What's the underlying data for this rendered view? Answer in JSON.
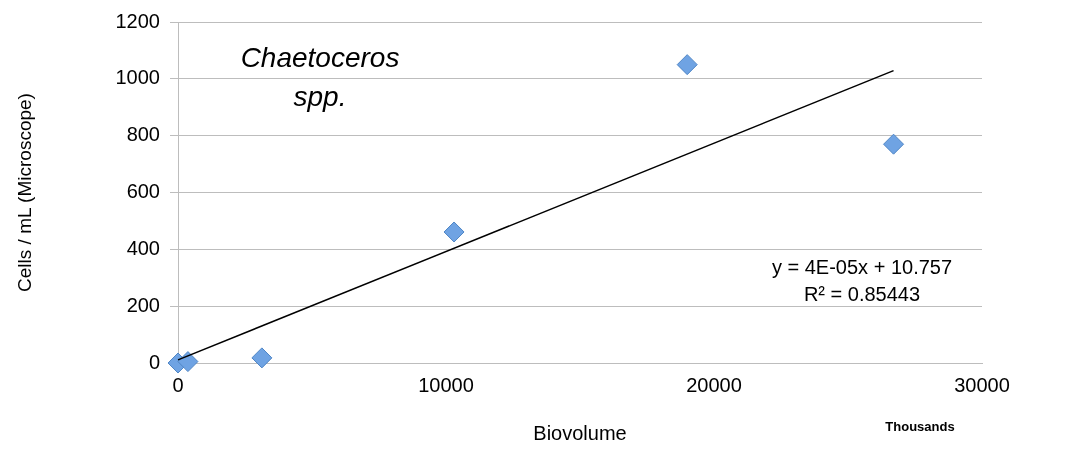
{
  "chart_data": {
    "type": "scatter",
    "title": "Chaetoceros spp.",
    "xlabel": "Biovolume",
    "ylabel": "Cells / mL (Microscope)",
    "xlim": [
      0,
      30000
    ],
    "xticks": [
      0,
      10000,
      20000,
      30000
    ],
    "ylim": [
      0,
      1200
    ],
    "yticks": [
      0,
      200,
      400,
      600,
      800,
      1000,
      1200
    ],
    "grid": "y",
    "legend": false,
    "marker": "diamond",
    "series": [
      {
        "type": "scatter",
        "color": "#6fa3e3",
        "x": [
          0,
          370,
          3130,
          10300,
          19000,
          26700
        ],
        "values": [
          0,
          5,
          18,
          461,
          1050,
          770
        ]
      },
      {
        "type": "line",
        "color": "#000000",
        "x": [
          0,
          26700
        ],
        "values": [
          11,
          1029
        ],
        "marker": "none"
      }
    ],
    "annotations": [
      "y = 4E-05x + 10.757",
      "R² = 0.85443",
      "Thousands"
    ]
  }
}
